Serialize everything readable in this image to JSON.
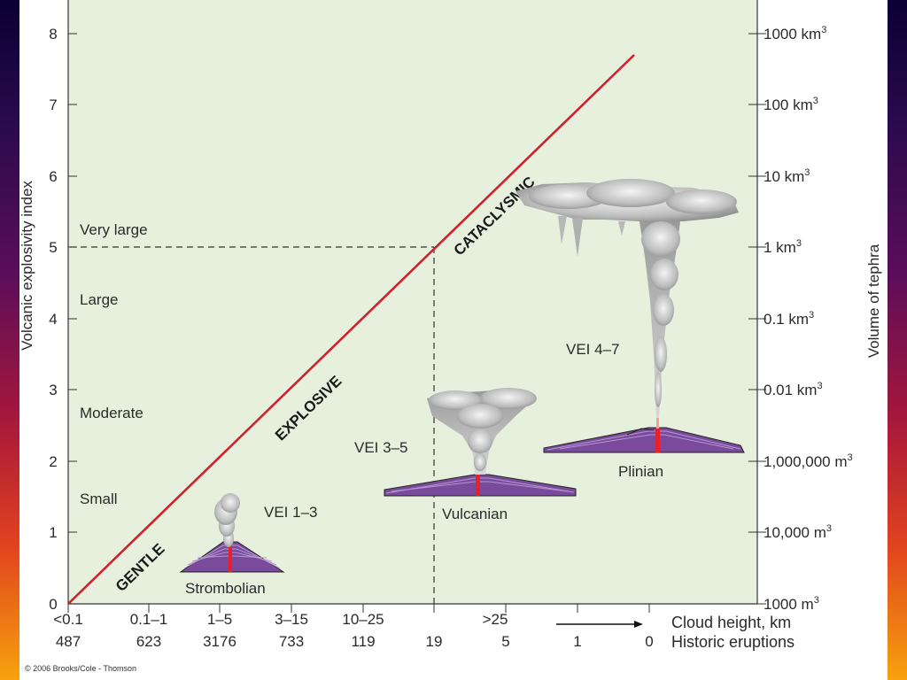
{
  "left_axis": {
    "title": "Volcanic explosivity index",
    "ticks": [
      "0",
      "1",
      "2",
      "3",
      "4",
      "5",
      "6",
      "7",
      "8"
    ]
  },
  "right_axis": {
    "title": "Volume of tephra",
    "ticks": [
      {
        "base": "1000 m",
        "sup": "3"
      },
      {
        "base": "10,000 m",
        "sup": "3"
      },
      {
        "base": "1,000,000 m",
        "sup": "3"
      },
      {
        "base": "0.01 km",
        "sup": "3"
      },
      {
        "base": "0.1 km",
        "sup": "3"
      },
      {
        "base": "1 km",
        "sup": "3"
      },
      {
        "base": "10 km",
        "sup": "3"
      },
      {
        "base": "100 km",
        "sup": "3"
      },
      {
        "base": "1000 km",
        "sup": "3"
      }
    ]
  },
  "size_labels": [
    "Small",
    "Moderate",
    "Large",
    "Very large"
  ],
  "bottom": {
    "cloud_heights": [
      "<0.1",
      "0.1–1",
      "1–5",
      "3–15",
      "10–25",
      ">25"
    ],
    "eruption_counts": [
      "487",
      "623",
      "3176",
      "733",
      "119",
      "19",
      "5",
      "1",
      "0"
    ],
    "cloud_label": "Cloud height, km",
    "eruptions_label": "Historic eruptions"
  },
  "line_labels": [
    "GENTLE",
    "EXPLOSIVE",
    "CATACLYSMIC"
  ],
  "eruption_types": [
    {
      "vei": "VEI 1–3",
      "name": "Strombolian"
    },
    {
      "vei": "VEI 3–5",
      "name": "Vulcanian"
    },
    {
      "vei": "VEI 4–7",
      "name": "Plinian"
    }
  ],
  "colors": {
    "plot_bg": "#e6f0dc",
    "line": "#d0202a",
    "strata": "#7a4a9c",
    "vent": "#e8202a"
  },
  "credit": "© 2006 Brooks/Cole - Thomson"
}
